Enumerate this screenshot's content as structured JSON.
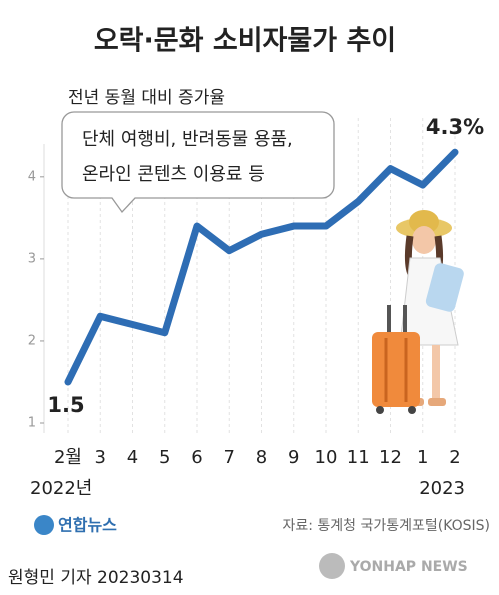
{
  "chart_data": {
    "type": "line",
    "title": "오락·문화 소비자물가 추이",
    "subtitle": "전년 동월 대비 증가율",
    "annotation": [
      "단체 여행비, 반려동물 용품,",
      "온라인 콘텐츠 이용료 등"
    ],
    "categories": [
      "2월",
      "3",
      "4",
      "5",
      "6",
      "7",
      "8",
      "9",
      "10",
      "11",
      "12",
      "1",
      "2"
    ],
    "year_labels": [
      "2022년",
      "2023"
    ],
    "values": [
      1.5,
      2.3,
      2.2,
      2.1,
      3.4,
      3.1,
      3.3,
      3.4,
      3.4,
      3.7,
      4.1,
      3.9,
      4.3
    ],
    "value_labels": [
      "1.5",
      null,
      null,
      null,
      null,
      null,
      null,
      null,
      null,
      null,
      null,
      null,
      "4.3%"
    ],
    "color": "#2e6db4",
    "ylim": [
      1,
      4.4
    ],
    "yticks": [
      1,
      2,
      3,
      4
    ],
    "grid": true
  },
  "logo": "연합뉴스",
  "source": "자료: 통계청 국가통계포털(KOSIS)",
  "credit": "원형민 기자  20230314",
  "agency": "YONHAP NEWS"
}
